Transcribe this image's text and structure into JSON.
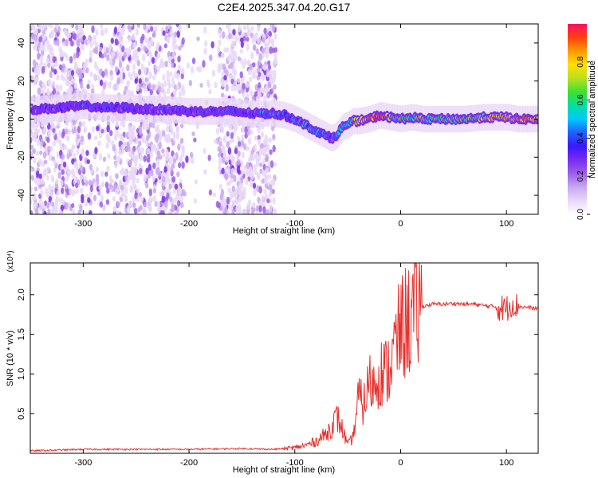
{
  "title": "C2E4.2025.347.04.20.G17",
  "colors": {
    "snr_line": "#e8302c",
    "axes": "#000000",
    "colorbar": [
      "#ffffff",
      "#e9d8f7",
      "#c9a8f0",
      "#9b5fe6",
      "#7a2cf0",
      "#3a18ff",
      "#2060ff",
      "#00c8ff",
      "#00e0a0",
      "#40e030",
      "#b8e020",
      "#ffe000",
      "#ff9a00",
      "#ff4010",
      "#ff1060"
    ]
  },
  "chart_data": [
    {
      "type": "heatmap",
      "name": "spectrogram",
      "title": "C2E4.2025.347.04.20.G17",
      "xlabel": "Height of straight line (km)",
      "ylabel": "Frequency (Hz)",
      "xlim": [
        -350,
        130
      ],
      "ylim": [
        -50,
        50
      ],
      "xticks": [
        -300,
        -200,
        -100,
        0,
        100
      ],
      "yticks": [
        -40,
        -20,
        0,
        20,
        40
      ],
      "colorbar": {
        "label": "Normalized spectral amplitude",
        "range": [
          0.0,
          1.0
        ],
        "ticks": [
          "0.0",
          "0.2",
          "0.4",
          "0.6",
          "0.8"
        ]
      },
      "ridge": {
        "x": [
          -350,
          -320,
          -300,
          -280,
          -260,
          -240,
          -220,
          -200,
          -180,
          -160,
          -140,
          -120,
          -110,
          -100,
          -90,
          -80,
          -70,
          -65,
          -60,
          -55,
          -50,
          -45,
          -40,
          -30,
          -20,
          -10,
          0,
          10,
          20,
          40,
          60,
          80,
          100,
          110,
          130
        ],
        "y": [
          5,
          6,
          7,
          6,
          6,
          5,
          5,
          4,
          4,
          4,
          3,
          3,
          2,
          0,
          -3,
          -6,
          -9,
          -10,
          -8,
          -4,
          -3,
          -1,
          -1,
          0,
          2,
          1,
          0,
          1,
          0,
          0,
          0,
          1,
          1,
          0,
          0
        ],
        "amplitude": [
          0.25,
          0.3,
          0.35,
          0.32,
          0.33,
          0.3,
          0.3,
          0.35,
          0.3,
          0.3,
          0.35,
          0.4,
          0.45,
          0.45,
          0.5,
          0.5,
          0.4,
          0.35,
          0.4,
          0.5,
          0.6,
          0.7,
          0.85,
          0.8,
          0.95,
          0.75,
          0.6,
          0.6,
          0.62,
          0.6,
          0.62,
          0.7,
          0.85,
          0.9,
          0.85
        ]
      }
    },
    {
      "type": "line",
      "name": "snr",
      "xlabel": "Height of straight line (km)",
      "ylabel": "SNR (10 * v/v)",
      "yscale_note": "(x10⁴)",
      "xlim": [
        -350,
        130
      ],
      "ylim": [
        0,
        2.4
      ],
      "xticks": [
        -300,
        -200,
        -100,
        0,
        100
      ],
      "yticks": [
        0.5,
        1.0,
        1.5,
        2.0
      ],
      "series": [
        {
          "name": "SNR",
          "x": [
            -350,
            -300,
            -250,
            -200,
            -150,
            -120,
            -100,
            -90,
            -80,
            -70,
            -60,
            -55,
            -50,
            -45,
            -40,
            -35,
            -30,
            -25,
            -20,
            -15,
            -10,
            -5,
            0,
            5,
            10,
            15,
            20,
            30,
            40,
            50,
            60,
            70,
            80,
            90,
            100,
            105,
            110,
            120,
            130
          ],
          "y": [
            0.03,
            0.05,
            0.05,
            0.05,
            0.06,
            0.05,
            0.07,
            0.1,
            0.15,
            0.25,
            0.45,
            0.3,
            0.1,
            0.2,
            0.7,
            0.6,
            0.9,
            0.85,
            1.05,
            1.0,
            1.1,
            1.35,
            1.55,
            1.65,
            1.7,
            1.8,
            1.85,
            1.88,
            1.88,
            1.89,
            1.88,
            1.88,
            1.86,
            1.85,
            1.82,
            1.9,
            1.85,
            1.84,
            1.82
          ]
        }
      ]
    }
  ]
}
